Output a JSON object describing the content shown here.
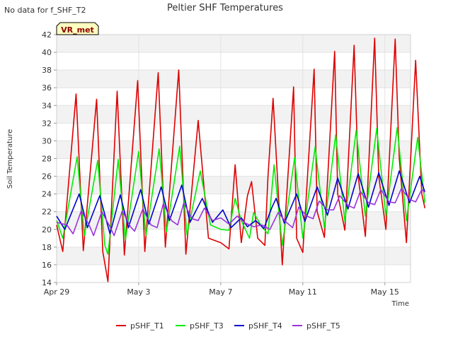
{
  "status_text": "No data for f_SHF_T2",
  "badge": {
    "text": "VR_met",
    "bg": "#ffffc0",
    "border": "#000000",
    "color": "#8b0000"
  },
  "chart_data": {
    "type": "line",
    "title": "Peltier SHF Temperatures",
    "xlabel": "Time",
    "ylabel": "Soil Temperature",
    "x_start": "Apr 29",
    "x_end_days": 17.25,
    "x_ticks": [
      {
        "label": "Apr 29",
        "day": 0
      },
      {
        "label": "May 3",
        "day": 4
      },
      {
        "label": "May 7",
        "day": 8
      },
      {
        "label": "May 11",
        "day": 12
      },
      {
        "label": "May 15",
        "day": 16
      }
    ],
    "ylim": [
      14,
      42
    ],
    "y_ticks": [
      14,
      16,
      18,
      20,
      22,
      24,
      26,
      28,
      30,
      32,
      34,
      36,
      38,
      40,
      42
    ],
    "grid": true,
    "legend_position": "bottom",
    "series": [
      {
        "name": "pSHF_T1",
        "color": "#dd0000",
        "points": [
          [
            0.0,
            20.5
          ],
          [
            0.3,
            17.5
          ],
          [
            0.95,
            35.3
          ],
          [
            1.3,
            17.6
          ],
          [
            1.95,
            34.7
          ],
          [
            2.25,
            17.5
          ],
          [
            2.5,
            14.1
          ],
          [
            2.95,
            35.6
          ],
          [
            3.3,
            17.1
          ],
          [
            3.95,
            36.8
          ],
          [
            4.3,
            17.5
          ],
          [
            4.95,
            37.7
          ],
          [
            5.3,
            18.0
          ],
          [
            5.95,
            38.0
          ],
          [
            6.3,
            17.2
          ],
          [
            6.9,
            32.3
          ],
          [
            7.4,
            19.0
          ],
          [
            8.0,
            18.5
          ],
          [
            8.4,
            17.8
          ],
          [
            8.7,
            27.3
          ],
          [
            9.0,
            18.5
          ],
          [
            9.3,
            23.8
          ],
          [
            9.5,
            25.4
          ],
          [
            9.8,
            19.0
          ],
          [
            10.15,
            18.2
          ],
          [
            10.3,
            26.0
          ],
          [
            10.55,
            34.8
          ],
          [
            11.0,
            16.0
          ],
          [
            11.55,
            36.1
          ],
          [
            11.7,
            19.0
          ],
          [
            12.0,
            17.4
          ],
          [
            12.55,
            38.1
          ],
          [
            12.7,
            22.0
          ],
          [
            13.05,
            19.1
          ],
          [
            13.55,
            40.1
          ],
          [
            13.7,
            24.0
          ],
          [
            14.05,
            19.9
          ],
          [
            14.5,
            40.8
          ],
          [
            14.7,
            26.0
          ],
          [
            15.05,
            19.2
          ],
          [
            15.5,
            41.6
          ],
          [
            15.7,
            26.0
          ],
          [
            16.05,
            20.0
          ],
          [
            16.5,
            41.5
          ],
          [
            16.7,
            28.0
          ],
          [
            17.05,
            18.5
          ],
          [
            17.5,
            39.1
          ],
          [
            17.8,
            24.0
          ],
          [
            17.95,
            22.4
          ]
        ]
      },
      {
        "name": "pSHF_T3",
        "color": "#00ee00",
        "points": [
          [
            0.0,
            21.0
          ],
          [
            0.3,
            19.0
          ],
          [
            1.0,
            28.2
          ],
          [
            1.35,
            19.3
          ],
          [
            2.0,
            27.8
          ],
          [
            2.35,
            18.2
          ],
          [
            2.5,
            17.2
          ],
          [
            3.0,
            27.9
          ],
          [
            3.35,
            18.8
          ],
          [
            4.0,
            28.8
          ],
          [
            4.35,
            19.3
          ],
          [
            5.0,
            29.1
          ],
          [
            5.35,
            19.7
          ],
          [
            6.0,
            29.4
          ],
          [
            6.35,
            19.4
          ],
          [
            7.0,
            26.6
          ],
          [
            7.5,
            20.5
          ],
          [
            8.0,
            20.0
          ],
          [
            8.4,
            19.9
          ],
          [
            8.7,
            23.5
          ],
          [
            9.0,
            21.0
          ],
          [
            9.4,
            19.0
          ],
          [
            9.6,
            21.9
          ],
          [
            10.0,
            20.3
          ],
          [
            10.3,
            19.5
          ],
          [
            10.6,
            27.3
          ],
          [
            11.0,
            18.2
          ],
          [
            11.6,
            28.1
          ],
          [
            12.0,
            19.0
          ],
          [
            12.6,
            29.3
          ],
          [
            13.05,
            20.2
          ],
          [
            13.6,
            30.7
          ],
          [
            14.05,
            20.9
          ],
          [
            14.6,
            31.2
          ],
          [
            15.05,
            21.5
          ],
          [
            15.6,
            31.4
          ],
          [
            16.05,
            21.5
          ],
          [
            16.6,
            31.5
          ],
          [
            17.05,
            21.0
          ],
          [
            17.6,
            30.4
          ],
          [
            17.95,
            23.0
          ]
        ]
      },
      {
        "name": "pSHF_T4",
        "color": "#0000cc",
        "points": [
          [
            0.0,
            21.5
          ],
          [
            0.4,
            20.0
          ],
          [
            1.1,
            24.0
          ],
          [
            1.5,
            20.2
          ],
          [
            2.1,
            23.8
          ],
          [
            2.6,
            19.5
          ],
          [
            3.1,
            23.9
          ],
          [
            3.5,
            20.2
          ],
          [
            4.1,
            24.5
          ],
          [
            4.5,
            20.6
          ],
          [
            5.1,
            24.8
          ],
          [
            5.5,
            21.0
          ],
          [
            6.1,
            25.0
          ],
          [
            6.5,
            20.8
          ],
          [
            7.1,
            23.5
          ],
          [
            7.6,
            20.8
          ],
          [
            8.1,
            22.2
          ],
          [
            8.5,
            20.2
          ],
          [
            9.0,
            21.3
          ],
          [
            9.3,
            20.3
          ],
          [
            9.7,
            21.0
          ],
          [
            10.1,
            20.1
          ],
          [
            10.5,
            22.5
          ],
          [
            10.7,
            23.5
          ],
          [
            11.1,
            20.7
          ],
          [
            11.7,
            24.0
          ],
          [
            12.1,
            20.9
          ],
          [
            12.7,
            24.8
          ],
          [
            13.2,
            21.6
          ],
          [
            13.7,
            25.8
          ],
          [
            14.2,
            22.3
          ],
          [
            14.7,
            26.3
          ],
          [
            15.2,
            22.5
          ],
          [
            15.7,
            26.4
          ],
          [
            16.2,
            22.7
          ],
          [
            16.7,
            26.6
          ],
          [
            17.2,
            23.0
          ],
          [
            17.7,
            26.0
          ],
          [
            17.95,
            24.2
          ]
        ]
      },
      {
        "name": "pSHF_T5",
        "color": "#9933dd",
        "points": [
          [
            0.0,
            20.8
          ],
          [
            0.5,
            20.5
          ],
          [
            0.8,
            19.5
          ],
          [
            1.2,
            22.1
          ],
          [
            1.6,
            20.4
          ],
          [
            1.8,
            19.3
          ],
          [
            2.2,
            22.0
          ],
          [
            2.6,
            20.3
          ],
          [
            2.8,
            19.3
          ],
          [
            3.2,
            22.1
          ],
          [
            3.6,
            20.3
          ],
          [
            3.8,
            19.8
          ],
          [
            4.2,
            22.3
          ],
          [
            4.6,
            20.5
          ],
          [
            4.9,
            20.2
          ],
          [
            5.2,
            22.9
          ],
          [
            5.6,
            21.0
          ],
          [
            5.9,
            20.5
          ],
          [
            6.2,
            23.0
          ],
          [
            6.6,
            21.2
          ],
          [
            6.9,
            21.0
          ],
          [
            7.2,
            22.4
          ],
          [
            7.6,
            21.0
          ],
          [
            8.0,
            21.3
          ],
          [
            8.4,
            20.6
          ],
          [
            8.8,
            21.5
          ],
          [
            9.2,
            20.7
          ],
          [
            9.6,
            20.3
          ],
          [
            10.0,
            20.5
          ],
          [
            10.4,
            20.0
          ],
          [
            10.8,
            21.9
          ],
          [
            11.2,
            20.8
          ],
          [
            11.5,
            20.2
          ],
          [
            11.8,
            22.5
          ],
          [
            12.2,
            21.5
          ],
          [
            12.5,
            21.2
          ],
          [
            12.8,
            23.2
          ],
          [
            13.2,
            22.2
          ],
          [
            13.5,
            22.2
          ],
          [
            13.8,
            23.8
          ],
          [
            14.2,
            22.7
          ],
          [
            14.5,
            22.4
          ],
          [
            14.8,
            24.3
          ],
          [
            15.2,
            23.0
          ],
          [
            15.5,
            22.8
          ],
          [
            15.8,
            24.5
          ],
          [
            16.2,
            23.1
          ],
          [
            16.5,
            23.0
          ],
          [
            16.8,
            24.6
          ],
          [
            17.2,
            23.4
          ],
          [
            17.5,
            23.1
          ],
          [
            17.8,
            24.5
          ],
          [
            17.95,
            24.2
          ]
        ]
      }
    ]
  }
}
